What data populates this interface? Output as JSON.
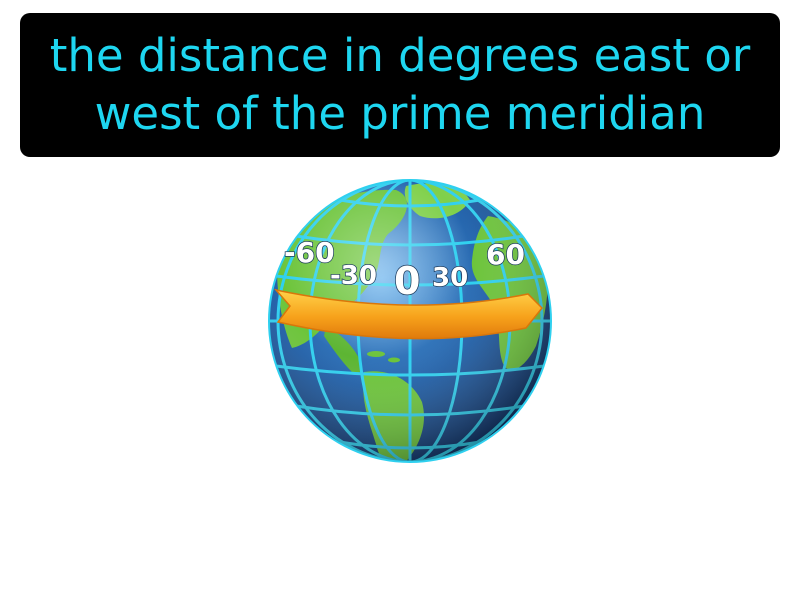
{
  "caption": {
    "line1": "the distance in degrees east or",
    "line2": "west of the prime meridian"
  },
  "colors": {
    "caption_background": "#000000",
    "caption_text": "#1ed6f0",
    "ocean": "#1f5fa8",
    "land": "#6cc43a",
    "grid_lines": "#2fd0ef",
    "arrow": "#f7a21b",
    "degree_labels": "#ffffff"
  },
  "globe": {
    "icon": "globe-icon",
    "arrow_direction": "east",
    "longitude_labels": [
      "-60",
      "-30",
      "0",
      "30",
      "60"
    ]
  }
}
